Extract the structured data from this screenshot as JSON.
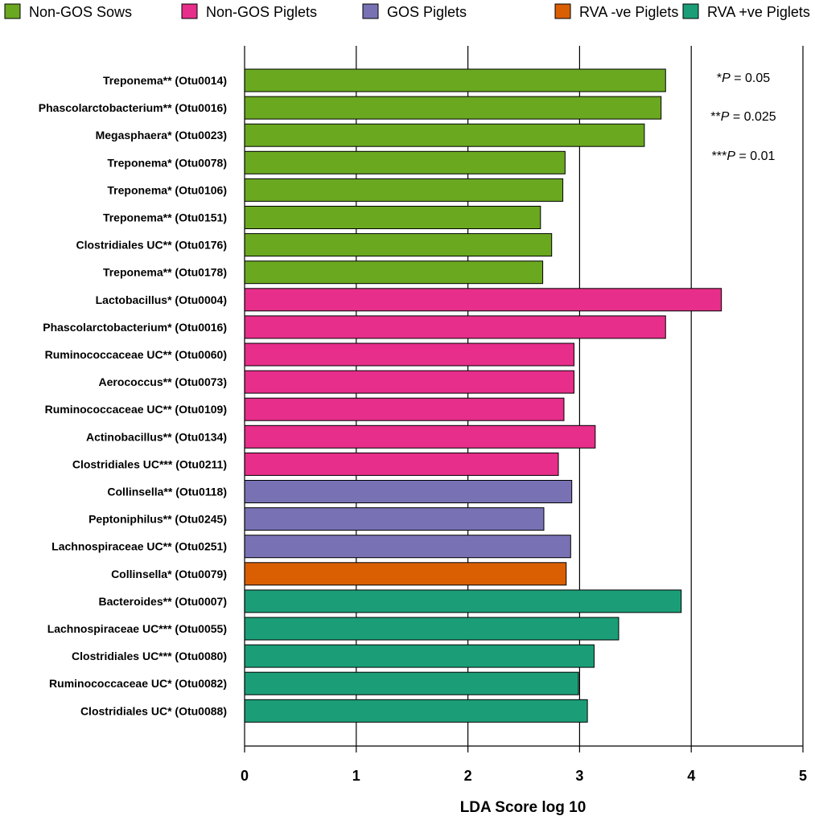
{
  "chart_data": {
    "type": "bar",
    "orientation": "horizontal",
    "title": "",
    "xlabel": "LDA Score log 10",
    "ylabel": "",
    "xlim": [
      0,
      5
    ],
    "xticks": [
      "0",
      "1",
      "2",
      "3",
      "4",
      "5"
    ],
    "grid": "vertical",
    "legend_position": "top",
    "groups": [
      {
        "name": "Non-GOS Sows",
        "color": "#6aa820"
      },
      {
        "name": "Non-GOS Piglets",
        "color": "#e62e8a"
      },
      {
        "name": "GOS Piglets",
        "color": "#7872b4"
      },
      {
        "name": "RVA -ve Piglets",
        "color": "#d95f02"
      },
      {
        "name": "RVA +ve Piglets",
        "color": "#1b9e77"
      }
    ],
    "bars": [
      {
        "label": "Treponema** (Otu0014)",
        "value": 3.77,
        "group": 0
      },
      {
        "label": "Phascolarctobacterium** (Otu0016)",
        "value": 3.73,
        "group": 0
      },
      {
        "label": "Megasphaera* (Otu0023)",
        "value": 3.58,
        "group": 0
      },
      {
        "label": "Treponema* (Otu0078)",
        "value": 2.87,
        "group": 0
      },
      {
        "label": "Treponema* (Otu0106)",
        "value": 2.85,
        "group": 0
      },
      {
        "label": "Treponema** (Otu0151)",
        "value": 2.65,
        "group": 0
      },
      {
        "label": "Clostridiales UC** (Otu0176)",
        "value": 2.75,
        "group": 0
      },
      {
        "label": "Treponema** (Otu0178)",
        "value": 2.67,
        "group": 0
      },
      {
        "label": "Lactobacillus* (Otu0004)",
        "value": 4.27,
        "group": 1
      },
      {
        "label": "Phascolarctobacterium* (Otu0016)",
        "value": 3.77,
        "group": 1
      },
      {
        "label": "Ruminococcaceae UC** (Otu0060)",
        "value": 2.95,
        "group": 1
      },
      {
        "label": "Aerococcus** (Otu0073)",
        "value": 2.95,
        "group": 1
      },
      {
        "label": "Ruminococcaceae UC** (Otu0109)",
        "value": 2.86,
        "group": 1
      },
      {
        "label": "Actinobacillus** (Otu0134)",
        "value": 3.14,
        "group": 1
      },
      {
        "label": "Clostridiales UC*** (Otu0211)",
        "value": 2.81,
        "group": 1
      },
      {
        "label": "Collinsella** (Otu0118)",
        "value": 2.93,
        "group": 2
      },
      {
        "label": "Peptoniphilus** (Otu0245)",
        "value": 2.68,
        "group": 2
      },
      {
        "label": "Lachnospiraceae UC** (Otu0251)",
        "value": 2.92,
        "group": 2
      },
      {
        "label": "Collinsella* (Otu0079)",
        "value": 2.88,
        "group": 3
      },
      {
        "label": "Bacteroides** (Otu0007)",
        "value": 3.91,
        "group": 4
      },
      {
        "label": "Lachnospiraceae UC*** (Otu0055)",
        "value": 3.35,
        "group": 4
      },
      {
        "label": "Clostridiales UC*** (Otu0080)",
        "value": 3.13,
        "group": 4
      },
      {
        "label": "Ruminococcaceae UC* (Otu0082)",
        "value": 2.99,
        "group": 4
      },
      {
        "label": "Clostridiales UC* (Otu0088)",
        "value": 3.07,
        "group": 4
      }
    ],
    "annotations": [
      {
        "prefix": "*",
        "var": "P",
        "suffix": " = 0.05"
      },
      {
        "prefix": "**",
        "var": "P",
        "suffix": " = 0.025"
      },
      {
        "prefix": "***",
        "var": "P",
        "suffix": " = 0.01"
      }
    ]
  }
}
